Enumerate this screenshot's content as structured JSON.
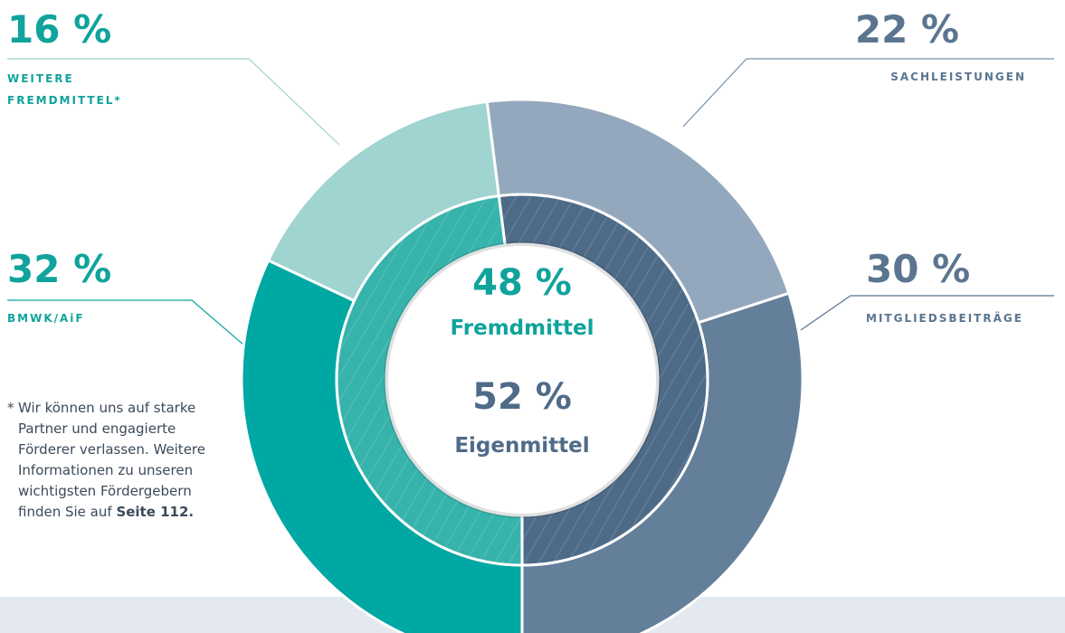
{
  "chart_data": {
    "type": "donut",
    "outer": {
      "categories": [
        "MITGLIEDSBEITRÄGE",
        "SACHLEISTUNGEN",
        "WEITERE FREMDMITTEL*",
        "BMWK/AiF"
      ],
      "values": [
        30,
        22,
        16,
        32
      ],
      "value_labels": [
        "30 %",
        "22 %",
        "16 %",
        "32 %"
      ],
      "colors": [
        "#647f99",
        "#94a8bd",
        "#a0d4d0",
        "#00a8a3"
      ],
      "text_colors": [
        "#5b7590",
        "#5b7590",
        "#10a39c",
        "#10a39c"
      ]
    },
    "inner": {
      "categories": [
        "Eigenmittel",
        "Fremdmittel"
      ],
      "values": [
        52,
        48
      ],
      "value_labels": [
        "52 %",
        "48 %"
      ],
      "colors": [
        "#4d6a87",
        "#36b3ab"
      ],
      "text_colors": [
        "#4f6b88",
        "#10a39c"
      ]
    },
    "footnote": {
      "marker": "*",
      "text": "Wir können uns auf starke Partner und engagierte Förderer verlassen. Weitere Informationen zu unseren wichtigsten Fördergebern finden Sie auf",
      "link": "Seite 112."
    }
  }
}
